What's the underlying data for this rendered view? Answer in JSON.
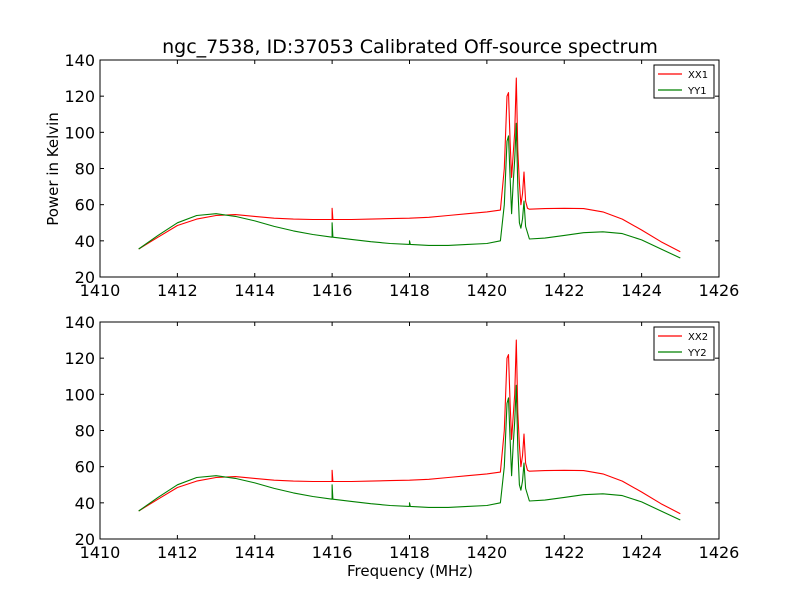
{
  "figure": {
    "title": "ngc_7538, ID:37053 Calibrated Off-source spectrum",
    "xlabel": "Frequency (MHz)",
    "ylabel": "Power in Kelvin"
  },
  "chart_data": [
    {
      "type": "line",
      "title": "ngc_7538, ID:37053 Calibrated Off-source spectrum",
      "xlabel": "",
      "ylabel": "Power in Kelvin",
      "xlim": [
        1410,
        1426
      ],
      "ylim": [
        20,
        140
      ],
      "xticks": [
        "1410",
        "1412",
        "1414",
        "1416",
        "1418",
        "1420",
        "1422",
        "1424",
        "1426"
      ],
      "yticks": [
        "20",
        "40",
        "60",
        "80",
        "100",
        "120",
        "140"
      ],
      "grid": false,
      "legend": "top-right",
      "series": [
        {
          "name": "XX1",
          "color": "#ff0000",
          "points": [
            [
              1411.0,
              35.5
            ],
            [
              1411.5,
              42
            ],
            [
              1412.0,
              48.5
            ],
            [
              1412.5,
              52
            ],
            [
              1413.0,
              54
            ],
            [
              1413.5,
              54.5
            ],
            [
              1414.0,
              53.5
            ],
            [
              1414.5,
              52.5
            ],
            [
              1415.0,
              52
            ],
            [
              1415.5,
              51.8
            ],
            [
              1416.0,
              51.8
            ],
            [
              1416.0,
              58
            ],
            [
              1416.02,
              51.8
            ],
            [
              1416.5,
              51.8
            ],
            [
              1417.0,
              52
            ],
            [
              1417.5,
              52.3
            ],
            [
              1418.0,
              52.5
            ],
            [
              1418.5,
              53
            ],
            [
              1419.0,
              54
            ],
            [
              1419.5,
              55
            ],
            [
              1420.0,
              56
            ],
            [
              1420.35,
              57
            ],
            [
              1420.45,
              80
            ],
            [
              1420.52,
              120
            ],
            [
              1420.56,
              122
            ],
            [
              1420.6,
              95
            ],
            [
              1420.64,
              75
            ],
            [
              1420.68,
              88
            ],
            [
              1420.72,
              100
            ],
            [
              1420.76,
              130
            ],
            [
              1420.8,
              90
            ],
            [
              1420.84,
              72
            ],
            [
              1420.88,
              60
            ],
            [
              1420.92,
              66
            ],
            [
              1420.96,
              78
            ],
            [
              1421.0,
              62
            ],
            [
              1421.05,
              58
            ],
            [
              1421.1,
              57.5
            ],
            [
              1421.5,
              57.8
            ],
            [
              1422.0,
              58
            ],
            [
              1422.5,
              57.8
            ],
            [
              1423.0,
              56
            ],
            [
              1423.5,
              52
            ],
            [
              1424.0,
              46
            ],
            [
              1424.5,
              39.5
            ],
            [
              1425.0,
              34
            ]
          ]
        },
        {
          "name": "YY1",
          "color": "#008000",
          "points": [
            [
              1411.0,
              35.5
            ],
            [
              1411.5,
              43
            ],
            [
              1412.0,
              50
            ],
            [
              1412.5,
              54
            ],
            [
              1413.0,
              55
            ],
            [
              1413.5,
              53.5
            ],
            [
              1414.0,
              51
            ],
            [
              1414.5,
              48
            ],
            [
              1415.0,
              45.5
            ],
            [
              1415.5,
              43.5
            ],
            [
              1416.0,
              42
            ],
            [
              1416.0,
              50
            ],
            [
              1416.02,
              42
            ],
            [
              1416.5,
              40.8
            ],
            [
              1417.0,
              39.5
            ],
            [
              1417.5,
              38.5
            ],
            [
              1418.0,
              38
            ],
            [
              1418.0,
              40
            ],
            [
              1418.02,
              38
            ],
            [
              1418.5,
              37.5
            ],
            [
              1419.0,
              37.5
            ],
            [
              1419.5,
              38
            ],
            [
              1420.0,
              38.5
            ],
            [
              1420.35,
              40
            ],
            [
              1420.45,
              60
            ],
            [
              1420.52,
              95
            ],
            [
              1420.56,
              98
            ],
            [
              1420.6,
              75
            ],
            [
              1420.64,
              55
            ],
            [
              1420.68,
              72
            ],
            [
              1420.72,
              85
            ],
            [
              1420.76,
              105
            ],
            [
              1420.8,
              70
            ],
            [
              1420.84,
              50
            ],
            [
              1420.88,
              47
            ],
            [
              1420.92,
              52
            ],
            [
              1420.96,
              62
            ],
            [
              1421.0,
              48
            ],
            [
              1421.1,
              41
            ],
            [
              1421.5,
              41.5
            ],
            [
              1422.0,
              43
            ],
            [
              1422.5,
              44.5
            ],
            [
              1423.0,
              45
            ],
            [
              1423.5,
              44
            ],
            [
              1424.0,
              40.5
            ],
            [
              1424.5,
              35.5
            ],
            [
              1425.0,
              30.5
            ]
          ]
        }
      ]
    },
    {
      "type": "line",
      "title": "",
      "xlabel": "Frequency (MHz)",
      "ylabel": "",
      "xlim": [
        1410,
        1426
      ],
      "ylim": [
        20,
        140
      ],
      "xticks": [
        "1410",
        "1412",
        "1414",
        "1416",
        "1418",
        "1420",
        "1422",
        "1424",
        "1426"
      ],
      "yticks": [
        "20",
        "40",
        "60",
        "80",
        "100",
        "120",
        "140"
      ],
      "grid": false,
      "legend": "top-right",
      "series": [
        {
          "name": "XX2",
          "color": "#ff0000",
          "points": [
            [
              1411.0,
              35.5
            ],
            [
              1411.5,
              42
            ],
            [
              1412.0,
              48.5
            ],
            [
              1412.5,
              52
            ],
            [
              1413.0,
              54
            ],
            [
              1413.5,
              54.5
            ],
            [
              1414.0,
              53.5
            ],
            [
              1414.5,
              52.5
            ],
            [
              1415.0,
              52
            ],
            [
              1415.5,
              51.8
            ],
            [
              1416.0,
              51.8
            ],
            [
              1416.0,
              58
            ],
            [
              1416.02,
              51.8
            ],
            [
              1416.5,
              51.8
            ],
            [
              1417.0,
              52
            ],
            [
              1417.5,
              52.3
            ],
            [
              1418.0,
              52.5
            ],
            [
              1418.5,
              53
            ],
            [
              1419.0,
              54
            ],
            [
              1419.5,
              55
            ],
            [
              1420.0,
              56
            ],
            [
              1420.35,
              57
            ],
            [
              1420.45,
              80
            ],
            [
              1420.52,
              120
            ],
            [
              1420.56,
              122
            ],
            [
              1420.6,
              95
            ],
            [
              1420.64,
              75
            ],
            [
              1420.68,
              88
            ],
            [
              1420.72,
              100
            ],
            [
              1420.76,
              130
            ],
            [
              1420.8,
              90
            ],
            [
              1420.84,
              72
            ],
            [
              1420.88,
              60
            ],
            [
              1420.92,
              66
            ],
            [
              1420.96,
              78
            ],
            [
              1421.0,
              62
            ],
            [
              1421.05,
              58
            ],
            [
              1421.1,
              57.5
            ],
            [
              1421.5,
              57.8
            ],
            [
              1422.0,
              58
            ],
            [
              1422.5,
              57.8
            ],
            [
              1423.0,
              56
            ],
            [
              1423.5,
              52
            ],
            [
              1424.0,
              46
            ],
            [
              1424.5,
              39.5
            ],
            [
              1425.0,
              34
            ]
          ]
        },
        {
          "name": "YY2",
          "color": "#008000",
          "points": [
            [
              1411.0,
              35.5
            ],
            [
              1411.5,
              43
            ],
            [
              1412.0,
              50
            ],
            [
              1412.5,
              54
            ],
            [
              1413.0,
              55
            ],
            [
              1413.5,
              53.5
            ],
            [
              1414.0,
              51
            ],
            [
              1414.5,
              48
            ],
            [
              1415.0,
              45.5
            ],
            [
              1415.5,
              43.5
            ],
            [
              1416.0,
              42
            ],
            [
              1416.0,
              50
            ],
            [
              1416.02,
              42
            ],
            [
              1416.5,
              40.8
            ],
            [
              1417.0,
              39.5
            ],
            [
              1417.5,
              38.5
            ],
            [
              1418.0,
              38
            ],
            [
              1418.0,
              40
            ],
            [
              1418.02,
              38
            ],
            [
              1418.5,
              37.5
            ],
            [
              1419.0,
              37.5
            ],
            [
              1419.5,
              38
            ],
            [
              1420.0,
              38.5
            ],
            [
              1420.35,
              40
            ],
            [
              1420.45,
              60
            ],
            [
              1420.52,
              95
            ],
            [
              1420.56,
              98
            ],
            [
              1420.6,
              75
            ],
            [
              1420.64,
              55
            ],
            [
              1420.68,
              72
            ],
            [
              1420.72,
              85
            ],
            [
              1420.76,
              105
            ],
            [
              1420.8,
              70
            ],
            [
              1420.84,
              50
            ],
            [
              1420.88,
              47
            ],
            [
              1420.92,
              52
            ],
            [
              1420.96,
              62
            ],
            [
              1421.0,
              48
            ],
            [
              1421.1,
              41
            ],
            [
              1421.5,
              41.5
            ],
            [
              1422.0,
              43
            ],
            [
              1422.5,
              44.5
            ],
            [
              1423.0,
              45
            ],
            [
              1423.5,
              44
            ],
            [
              1424.0,
              40.5
            ],
            [
              1424.5,
              35.5
            ],
            [
              1425.0,
              30.5
            ]
          ]
        }
      ]
    }
  ]
}
